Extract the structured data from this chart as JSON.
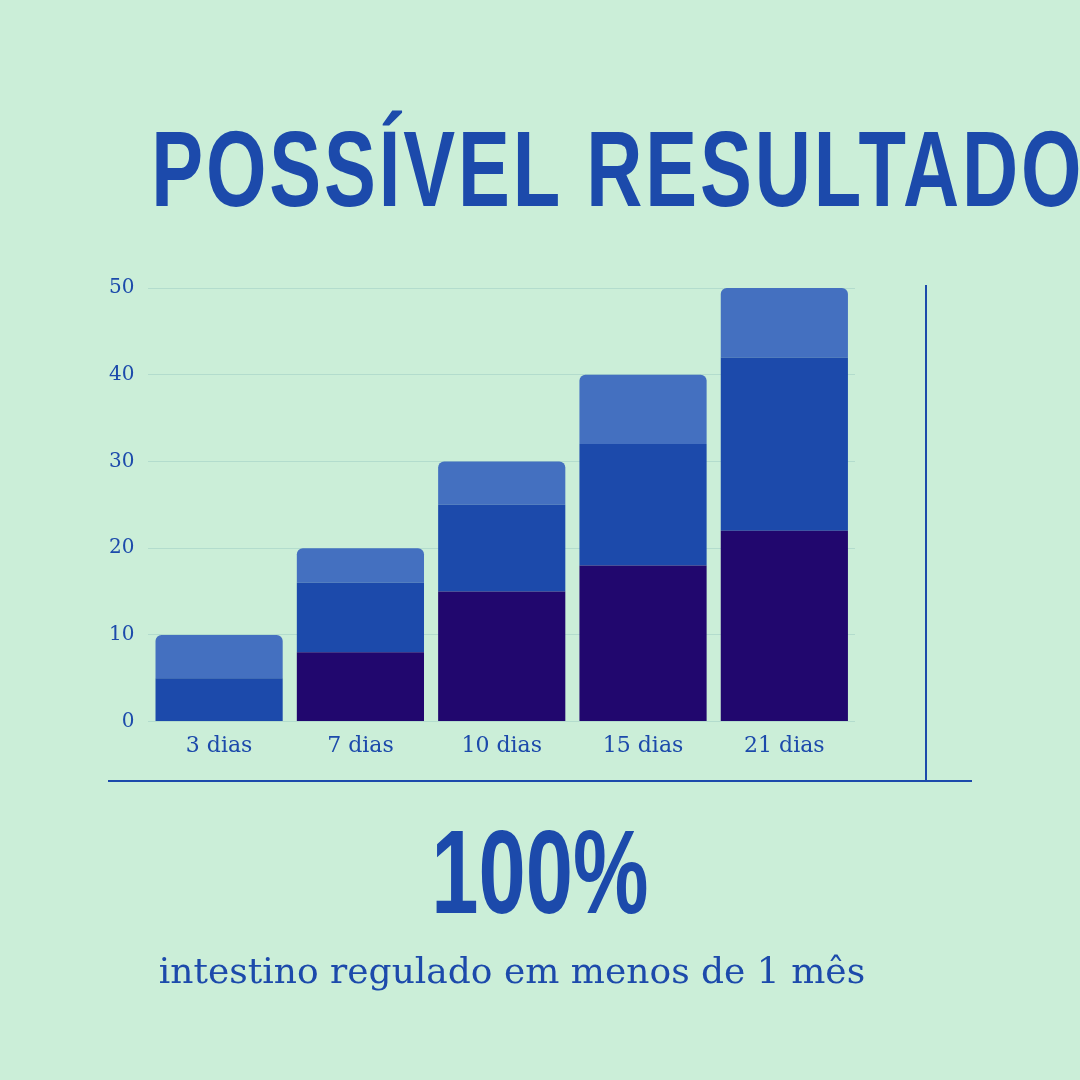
{
  "chart_data": {
    "type": "bar",
    "title": "POSSÍVEL RESULTADO",
    "stacked": true,
    "grid": "y",
    "categories": [
      "3 dias",
      "7 dias",
      "10 dias",
      "15 dias",
      "21 dias"
    ],
    "series": [
      {
        "color": "#21076e",
        "values": [
          0,
          8,
          15,
          18,
          22
        ]
      },
      {
        "color": "#1c4aab",
        "values": [
          5,
          8,
          10,
          14,
          20
        ]
      },
      {
        "color": "#4470c0",
        "values": [
          5,
          4,
          5,
          8,
          8
        ]
      }
    ],
    "ylim": [
      0,
      50
    ],
    "yticks": [
      0,
      10,
      20,
      30,
      40,
      50
    ],
    "annotations": [
      "100%",
      "intestino regulado em menos de 1 mês"
    ]
  }
}
